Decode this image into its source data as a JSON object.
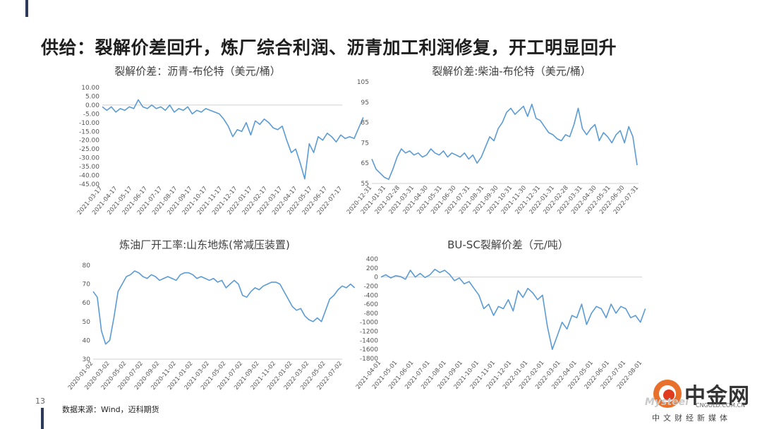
{
  "page": {
    "title": "供给：裂解价差回升，炼厂综合利润、沥青加工利润修复，开工明显回升",
    "page_number": "13",
    "source": "数据来源：Wind，迈科期货",
    "logo": {
      "name": "中金网",
      "domain": "CNGOLD.COM.CN",
      "subtitle": "中文财经新媒体",
      "watermark": "Mysteel"
    },
    "line_color": "#5b9bd5"
  },
  "chart_data": [
    {
      "type": "line",
      "title": "裂解价差：沥青-布伦特（美元/桶）",
      "ylim": [
        -45,
        10
      ],
      "yticks": [
        10,
        5,
        0,
        -5,
        -10,
        -15,
        -20,
        -25,
        -30,
        -35,
        -40,
        -45
      ],
      "ytick_labels": [
        "10.00",
        "5.00",
        "0.00",
        "-5.00",
        "-10.00",
        "-15.00",
        "-20.00",
        "-25.00",
        "-30.00",
        "-35.00",
        "-40.00",
        "-45.00"
      ],
      "xtick_labels": [
        "2021-03-17",
        "2021-04-17",
        "2021-05-17",
        "2021-06-17",
        "2021-07-17",
        "2021-08-17",
        "2021-09-17",
        "2021-10-17",
        "2021-11-17",
        "2021-12-17",
        "2022-01-17",
        "2022-02-17",
        "2022-03-17",
        "2022-04-17",
        "2022-05-17",
        "2022-06-17",
        "2022-07-17"
      ],
      "x": [
        0,
        0.3,
        0.6,
        0.9,
        1.2,
        1.5,
        1.8,
        2.1,
        2.4,
        2.7,
        3.0,
        3.3,
        3.6,
        3.9,
        4.2,
        4.5,
        4.8,
        5.1,
        5.4,
        5.7,
        6.0,
        6.3,
        6.6,
        6.9,
        7.2,
        7.5,
        7.8,
        8.1,
        8.4,
        8.7,
        9.0,
        9.3,
        9.6,
        9.9,
        10.2,
        10.5,
        10.8,
        11.1,
        11.4,
        11.7,
        12.0,
        12.3,
        12.6,
        12.9,
        13.2,
        13.5,
        13.8,
        14.1,
        14.4,
        14.7,
        15.0,
        15.3,
        15.6,
        15.9,
        16.2,
        16.5,
        16.8,
        17.1,
        17.4
      ],
      "y": [
        -1,
        -3,
        -1,
        -4,
        -2,
        -3,
        -1,
        -2,
        3,
        -1,
        -2,
        0,
        -2,
        -1,
        -3,
        0,
        -4,
        -2,
        -3,
        -1,
        -5,
        -3,
        -4,
        -2,
        -3,
        -4,
        -5,
        -8,
        -12,
        -18,
        -14,
        -15,
        -10,
        -17,
        -9,
        -11,
        -8,
        -10,
        -13,
        -14,
        -12,
        -20,
        -27,
        -25,
        -33,
        -42,
        -22,
        -27,
        -18,
        -20,
        -16,
        -18,
        -21,
        -17,
        -19,
        -18,
        -19,
        -13,
        -7
      ]
    },
    {
      "type": "line",
      "title": "裂解价差:柴油-布伦特（美元/桶）",
      "ylim": [
        55,
        105
      ],
      "yticks": [
        105,
        95,
        85,
        75,
        65,
        55
      ],
      "ytick_labels": [
        "105",
        "95",
        "85",
        "75",
        "65",
        "55"
      ],
      "xtick_labels": [
        "2020-12-31",
        "2021-01-31",
        "2021-02-28",
        "2021-03-31",
        "2021-04-30",
        "2021-05-31",
        "2021-06-30",
        "2021-07-31",
        "2021-08-31",
        "2021-09-30",
        "2021-10-31",
        "2021-11-30",
        "2021-12-31",
        "2022-01-31",
        "2022-02-28",
        "2022-03-31",
        "2022-04-30",
        "2022-05-31",
        "2022-06-30",
        "2022-07-31"
      ],
      "x": [
        0,
        0.3,
        0.6,
        0.9,
        1.2,
        1.5,
        1.8,
        2.1,
        2.4,
        2.7,
        3.0,
        3.3,
        3.6,
        3.9,
        4.2,
        4.5,
        4.8,
        5.1,
        5.4,
        5.7,
        6.0,
        6.3,
        6.6,
        6.9,
        7.2,
        7.5,
        7.8,
        8.1,
        8.4,
        8.7,
        9.0,
        9.3,
        9.6,
        9.9,
        10.2,
        10.5,
        10.8,
        11.1,
        11.4,
        11.7,
        12.0,
        12.3,
        12.6,
        12.9,
        13.2,
        13.5,
        13.8,
        14.1,
        14.4,
        14.7,
        15.0,
        15.3,
        15.6,
        15.9,
        16.2,
        16.5,
        16.8,
        17.1,
        17.4,
        17.7,
        18.0,
        18.3,
        18.6,
        18.9
      ],
      "y": [
        67,
        62,
        60,
        58,
        57,
        62,
        68,
        72,
        70,
        71,
        69,
        70,
        68,
        69,
        72,
        70,
        69,
        71,
        68,
        70,
        69,
        68,
        70,
        67,
        69,
        65,
        68,
        73,
        78,
        76,
        82,
        85,
        90,
        92,
        89,
        91,
        93,
        88,
        94,
        87,
        86,
        83,
        80,
        79,
        77,
        76,
        79,
        78,
        84,
        92,
        82,
        79,
        82,
        84,
        76,
        80,
        78,
        75,
        79,
        81,
        75,
        83,
        78,
        64
      ]
    },
    {
      "type": "line",
      "title": "炼油厂开工率:山东地炼(常减压装置)",
      "ylim": [
        30,
        80
      ],
      "yticks": [
        80,
        70,
        60,
        50,
        40,
        30
      ],
      "ytick_labels": [
        "80",
        "70",
        "60",
        "50",
        "40",
        "30"
      ],
      "xtick_labels": [
        "2020-01-02",
        "2020-03-02",
        "2020-05-02",
        "2020-07-02",
        "2020-09-02",
        "2020-11-02",
        "2021-01-02",
        "2021-03-02",
        "2021-05-02",
        "2021-07-02",
        "2021-09-02",
        "2021-11-02",
        "2022-01-02",
        "2022-03-02",
        "2022-05-02",
        "2022-07-02"
      ],
      "x": [
        0,
        0.25,
        0.5,
        0.75,
        1.0,
        1.25,
        1.5,
        1.75,
        2.0,
        2.25,
        2.5,
        2.75,
        3.0,
        3.25,
        3.5,
        3.75,
        4.0,
        4.25,
        4.5,
        4.75,
        5.0,
        5.25,
        5.5,
        5.75,
        6.0,
        6.25,
        6.5,
        6.75,
        7.0,
        7.25,
        7.5,
        7.75,
        8.0,
        8.25,
        8.5,
        8.75,
        9.0,
        9.25,
        9.5,
        9.75,
        10.0,
        10.25,
        10.5,
        10.75,
        11.0,
        11.25,
        11.5,
        11.75,
        12.0,
        12.25,
        12.5,
        12.75,
        13.0,
        13.25,
        13.5,
        13.75,
        14.0,
        14.25,
        14.5,
        14.75,
        15.0,
        15.25,
        15.5,
        15.75
      ],
      "y": [
        66,
        63,
        45,
        38,
        40,
        52,
        66,
        70,
        74,
        75,
        77,
        76,
        74,
        73,
        75,
        74,
        72,
        73,
        74,
        73,
        72,
        75,
        76,
        76,
        75,
        73,
        74,
        73,
        72,
        73,
        71,
        72,
        68,
        70,
        72,
        70,
        64,
        63,
        66,
        68,
        67,
        69,
        70,
        71,
        71,
        70,
        66,
        62,
        58,
        56,
        57,
        53,
        51,
        50,
        52,
        50,
        56,
        62,
        64,
        67,
        69,
        68,
        70,
        68
      ]
    },
    {
      "type": "line",
      "title": "BU-SC裂解价差（元/吨）",
      "ylim": [
        -1800,
        400
      ],
      "yticks": [
        400,
        200,
        0,
        -200,
        -400,
        -600,
        -800,
        -1000,
        -1200,
        -1400,
        -1600,
        -1800
      ],
      "ytick_labels": [
        "400",
        "200",
        "0",
        "-200",
        "-400",
        "-600",
        "-800",
        "-1000",
        "-1200",
        "-1400",
        "-1600",
        "-1800"
      ],
      "xtick_labels": [
        "2021-04-01",
        "2021-05-01",
        "2021-06-01",
        "2021-07-01",
        "2021-08-01",
        "2021-09-01",
        "2021-10-01",
        "2021-11-01",
        "2021-12-01",
        "2022-01-01",
        "2022-02-01",
        "2022-03-01",
        "2022-04-01",
        "2022-05-01",
        "2022-06-01",
        "2022-07-01",
        "2022-08-01"
      ],
      "x": [
        0,
        0.3,
        0.6,
        0.9,
        1.2,
        1.5,
        1.8,
        2.1,
        2.4,
        2.7,
        3.0,
        3.3,
        3.6,
        3.9,
        4.2,
        4.5,
        4.8,
        5.1,
        5.4,
        5.7,
        6.0,
        6.3,
        6.6,
        6.9,
        7.2,
        7.5,
        7.8,
        8.1,
        8.4,
        8.7,
        9.0,
        9.3,
        9.6,
        9.9,
        10.2,
        10.5,
        10.8,
        11.1,
        11.4,
        11.7,
        12.0,
        12.3,
        12.6,
        12.9,
        13.2,
        13.5,
        13.8,
        14.1,
        14.4,
        14.7,
        15.0,
        15.3,
        15.6,
        15.9,
        16.2
      ],
      "y": [
        0,
        50,
        -20,
        30,
        10,
        -50,
        150,
        0,
        80,
        -10,
        50,
        170,
        100,
        150,
        60,
        -80,
        -20,
        -150,
        -100,
        -250,
        -400,
        -700,
        -600,
        -850,
        -650,
        -700,
        -500,
        -750,
        -300,
        -450,
        -250,
        -350,
        -500,
        -400,
        -1100,
        -1600,
        -1300,
        -1000,
        -1150,
        -850,
        -900,
        -600,
        -1050,
        -800,
        -650,
        -700,
        -900,
        -600,
        -800,
        -650,
        -700,
        -900,
        -850,
        -1000,
        -700
      ]
    }
  ]
}
